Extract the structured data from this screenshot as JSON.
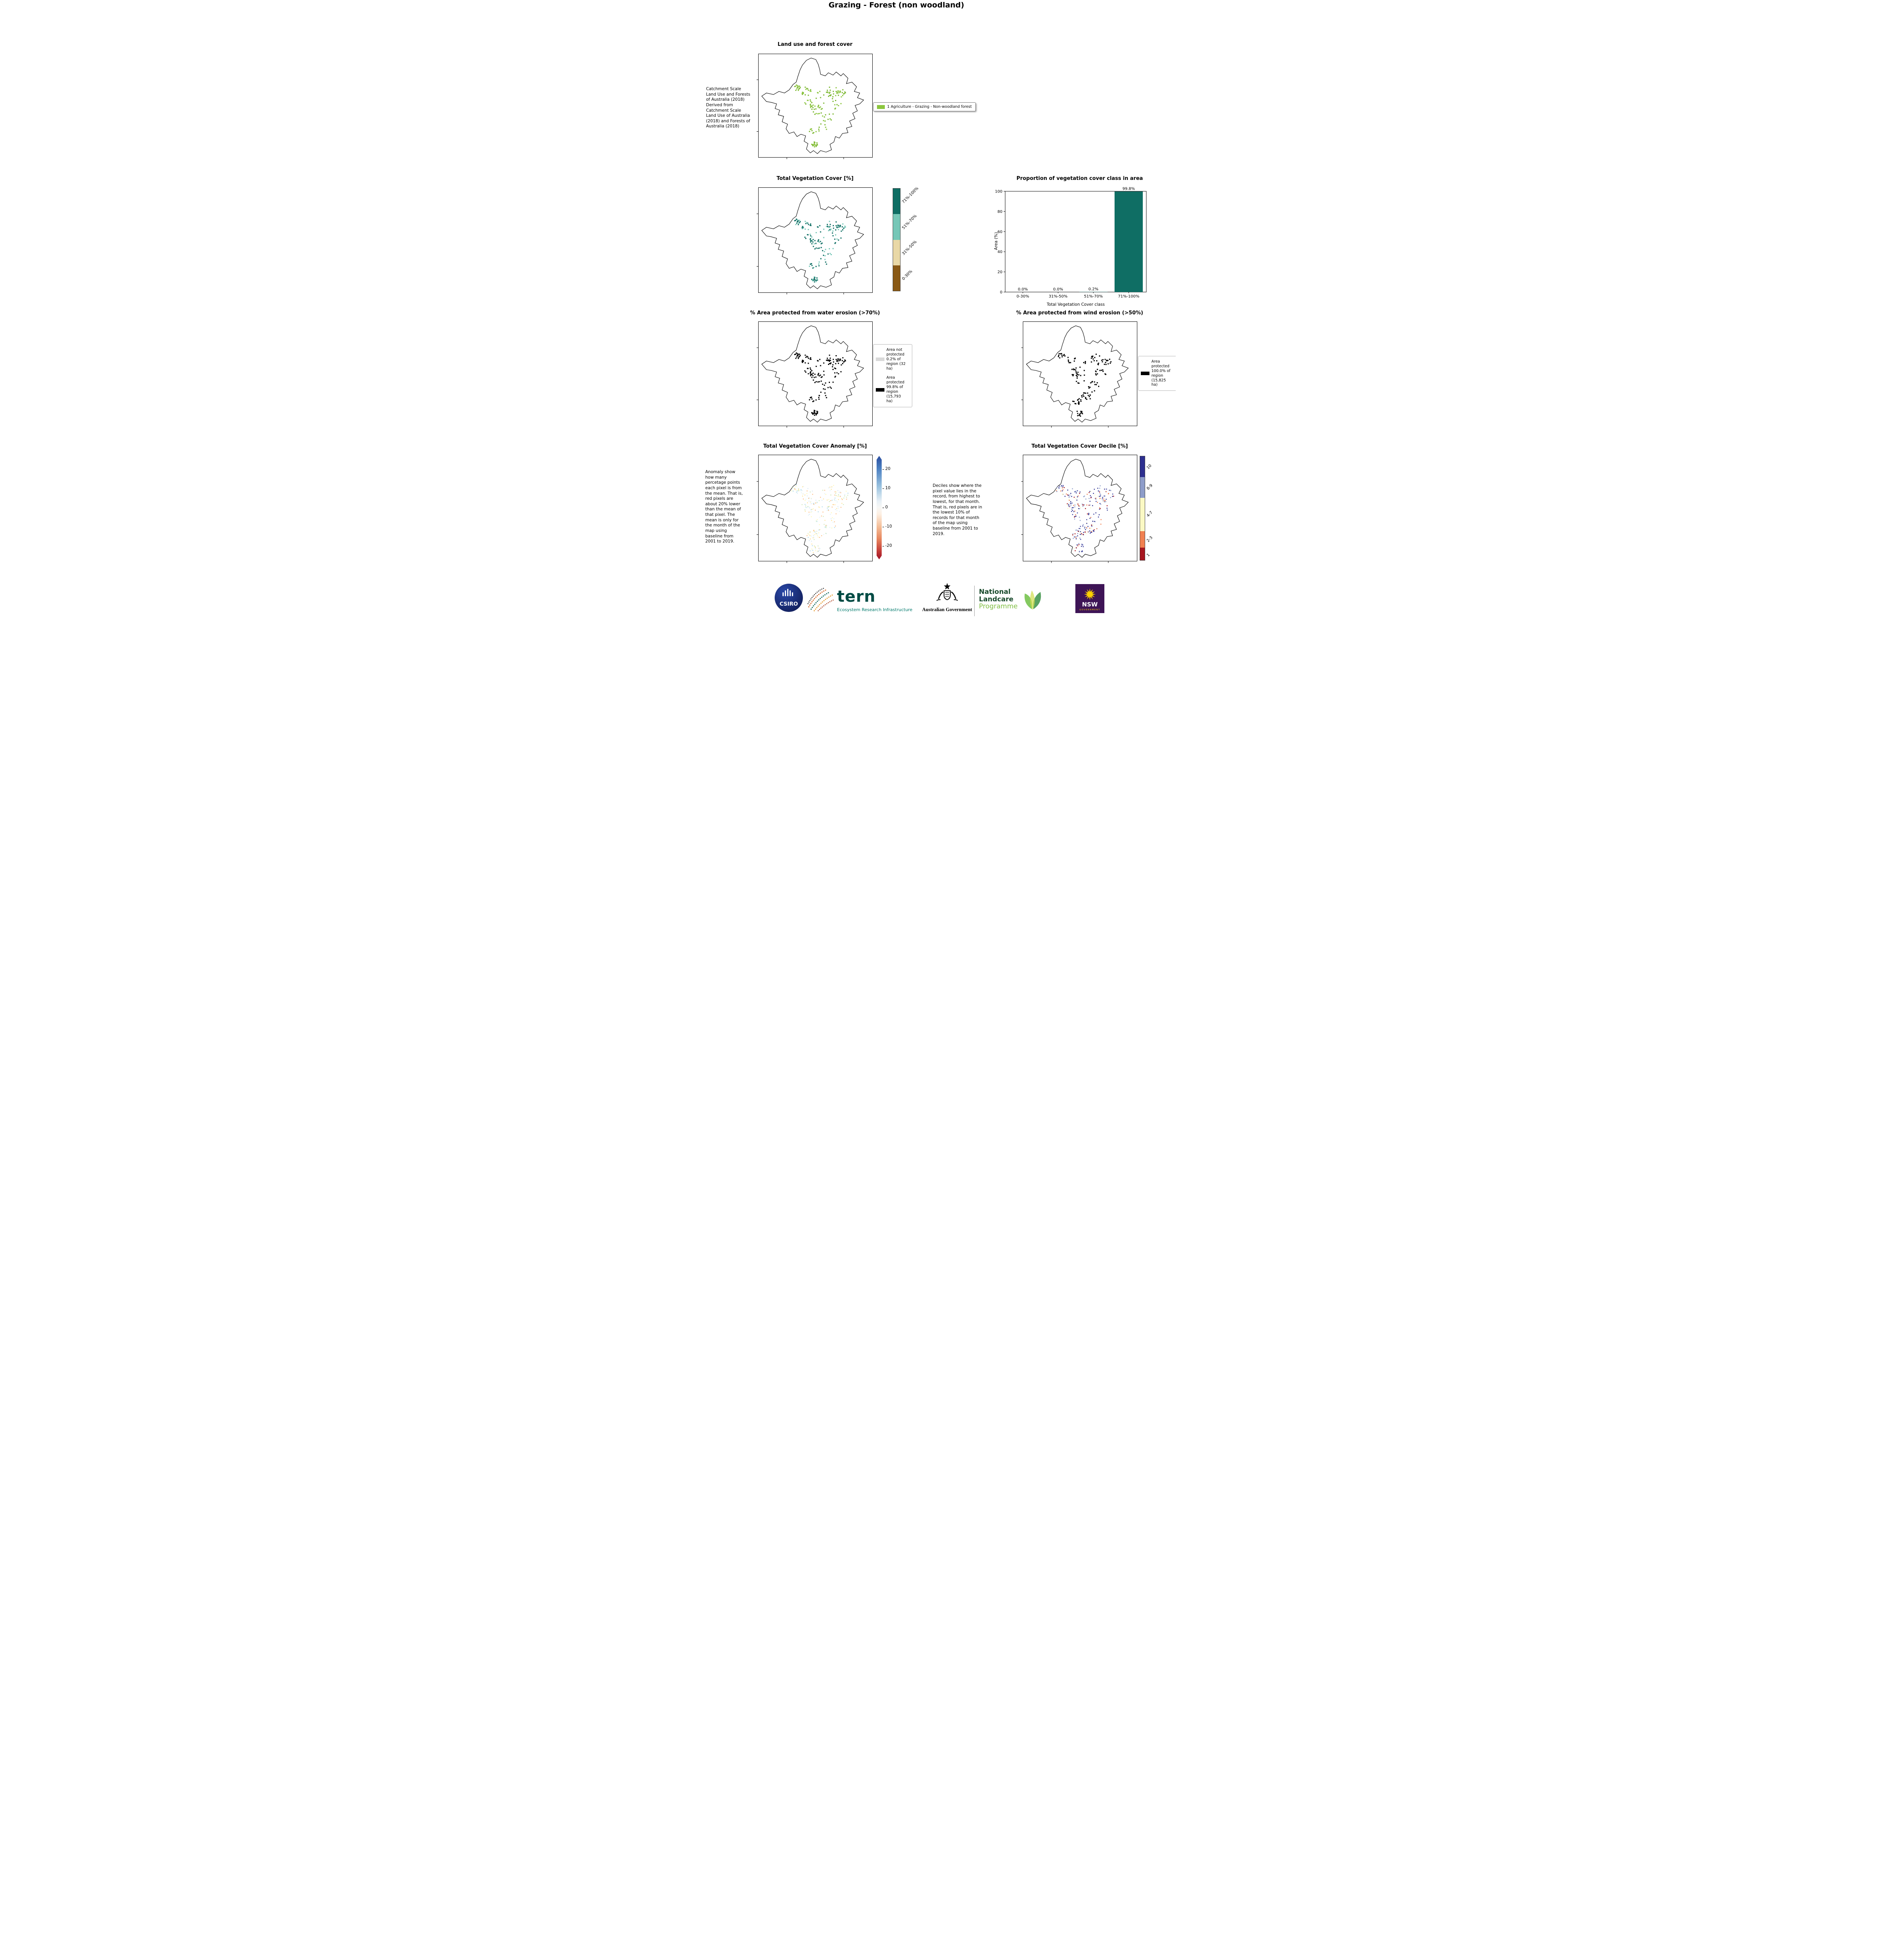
{
  "page_title": "Grazing - Forest (non woodland)",
  "panels": {
    "land_use": {
      "title": "Land use and forest cover",
      "note": "Catchment Scale Land Use and Forests of Australia (2018) Derived from Catchment Scale Land Use of Australia (2018) and Forests of Australia (2018)",
      "legend": {
        "swatch_color": "#8cc63e",
        "label": "1 Agriculture - Grazing - Non-woodland forest"
      }
    },
    "veg_cover": {
      "title": "Total Vegetation Cover [%]",
      "colorbar": {
        "classes": [
          {
            "label": "71%-100%",
            "color": "#0f6e64"
          },
          {
            "label": "51%-70%",
            "color": "#76c7b7"
          },
          {
            "label": "31%-50%",
            "color": "#e9d8a6"
          },
          {
            "label": "0-30%",
            "color": "#8a5a16"
          }
        ]
      }
    },
    "water_erosion": {
      "title": "% Area protected from water erosion (>70%)",
      "legend": [
        {
          "swatch_color": "#d9d9d9",
          "label": "Area not protected 0.2% of region (32 ha)"
        },
        {
          "swatch_color": "#000000",
          "label": "Area protected 99.8% of region (15,793 ha)"
        }
      ]
    },
    "wind_erosion": {
      "title": "% Area protected from wind erosion (>50%)",
      "legend": [
        {
          "swatch_color": "#000000",
          "label": "Area protected 100.0% of region (15,825 ha)"
        }
      ]
    },
    "anomaly": {
      "title": "Total Vegetation Cover Anomaly [%]",
      "note": "Anomaly show how many percetage points each pixel is from the mean. That is, red pixels are about 20% lower than the mean of that pixel. The mean is only for the month of the map using baseline from 2001 to 2019.",
      "colorbar_ticks": [
        "20",
        "10",
        "0",
        "-10",
        "-20"
      ]
    },
    "decile": {
      "title": "Total Vegetation Cover Decile [%]",
      "note": "Deciles show where the pixel value lies in the record, from highest to lowest, for that month. That is, red pixels are in the lowest 10% of records for that month of the map using baseline from 2001 to 2019.",
      "colorbar": {
        "classes": [
          {
            "label": "10",
            "color": "#2d2f8f"
          },
          {
            "label": "8-9",
            "color": "#8d9cc9"
          },
          {
            "label": "4-7",
            "color": "#fbf9c4"
          },
          {
            "label": "2-3",
            "color": "#f08050"
          },
          {
            "label": "1",
            "color": "#a6161f"
          }
        ]
      }
    }
  },
  "chart_data": {
    "type": "bar",
    "title": "Proportion of vegetation cover class in area",
    "categories": [
      "0-30%",
      "31%-50%",
      "51%-70%",
      "71%-100%"
    ],
    "values": [
      0.0,
      0.0,
      0.2,
      99.8
    ],
    "value_labels": [
      "0.0%",
      "0.0%",
      "0.2%",
      "99.8%"
    ],
    "xlabel": "Total Vegetation Cover class",
    "ylabel": "Area (%)",
    "ylim": [
      0,
      100
    ],
    "yticks": [
      0,
      20,
      40,
      60,
      80,
      100
    ],
    "bar_color": "#0f6e64",
    "grid": false,
    "legend_position": "none"
  },
  "footer": {
    "csiro": "CSIRO",
    "tern": {
      "name": "tern",
      "tagline": "Ecosystem Research Infrastructure"
    },
    "australian_government": "Australian Government",
    "landcare": {
      "line1": "National",
      "line2": "Landcare",
      "line3": "Programme"
    },
    "nsw": {
      "name": "NSW",
      "sub": "GOVERNMENT"
    }
  }
}
